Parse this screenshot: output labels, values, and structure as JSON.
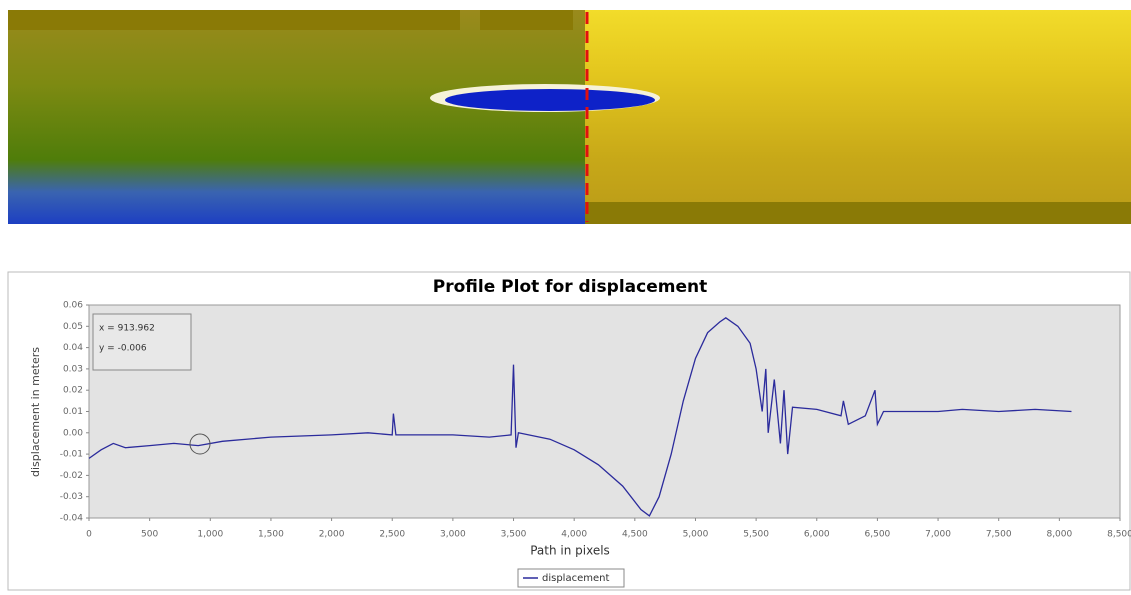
{
  "chart_data": {
    "type": "line",
    "title": "Profile Plot for displacement",
    "x_label": "Path in pixels",
    "y_label": "displacement in meters",
    "annotations": [
      "x = 913.962",
      "y = -0.006"
    ],
    "x": [
      0,
      100,
      200,
      300,
      500,
      700,
      900,
      1100,
      1500,
      2000,
      2300,
      2500,
      2510,
      2530,
      3000,
      3300,
      3480,
      3500,
      3520,
      3540,
      3800,
      4000,
      4200,
      4400,
      4550,
      4620,
      4700,
      4800,
      4900,
      5000,
      5100,
      5200,
      5250,
      5350,
      5450,
      5500,
      5550,
      5580,
      5600,
      5650,
      5700,
      5730,
      5760,
      5800,
      6000,
      6200,
      6220,
      6260,
      6400,
      6480,
      6500,
      6550,
      7000,
      7200,
      7500,
      7800,
      8100
    ],
    "series": [
      {
        "name": "displacement",
        "color": "#2b2b9c",
        "values": [
          -0.012,
          -0.008,
          -0.005,
          -0.007,
          -0.006,
          -0.005,
          -0.006,
          -0.004,
          -0.002,
          -0.001,
          0.0,
          -0.001,
          0.009,
          -0.001,
          -0.001,
          -0.002,
          -0.001,
          0.032,
          -0.007,
          0.0,
          -0.003,
          -0.008,
          -0.015,
          -0.025,
          -0.036,
          -0.039,
          -0.03,
          -0.01,
          0.015,
          0.035,
          0.047,
          0.052,
          0.054,
          0.05,
          0.042,
          0.03,
          0.01,
          0.03,
          0.0,
          0.025,
          -0.005,
          0.02,
          -0.01,
          0.012,
          0.011,
          0.008,
          0.015,
          0.004,
          0.008,
          0.02,
          0.004,
          0.01,
          0.01,
          0.011,
          0.01,
          0.011,
          0.01
        ]
      }
    ],
    "xlim": [
      0,
      8500
    ],
    "ylim": [
      -0.04,
      0.06
    ],
    "xticks": [
      0,
      500,
      {
        "value": 1000,
        "label": "1,000"
      },
      {
        "value": 1500,
        "label": "1,500"
      },
      {
        "value": 2000,
        "label": "2,000"
      },
      {
        "value": 2500,
        "label": "2,500"
      },
      {
        "value": 3000,
        "label": "3,000"
      },
      {
        "value": 3500,
        "label": "3,500"
      },
      {
        "value": 4000,
        "label": "4,000"
      },
      {
        "value": 4500,
        "label": "4,500"
      },
      {
        "value": 5000,
        "label": "5,000"
      },
      {
        "value": 5500,
        "label": "5,500"
      },
      {
        "value": 6000,
        "label": "6,000"
      },
      {
        "value": 6500,
        "label": "6,500"
      },
      {
        "value": 7000,
        "label": "7,000"
      },
      {
        "value": 7500,
        "label": "7,500"
      },
      {
        "value": 8000,
        "label": "8,000"
      },
      {
        "value": 8500,
        "label": "8,500"
      }
    ],
    "yticks": [
      0.06,
      0.05,
      0.04,
      0.03,
      0.02,
      0.01,
      {
        "value": 0,
        "label": "0.00"
      },
      -0.01,
      -0.02,
      -0.03,
      -0.04
    ],
    "grid": false,
    "legend": "bottom"
  }
}
